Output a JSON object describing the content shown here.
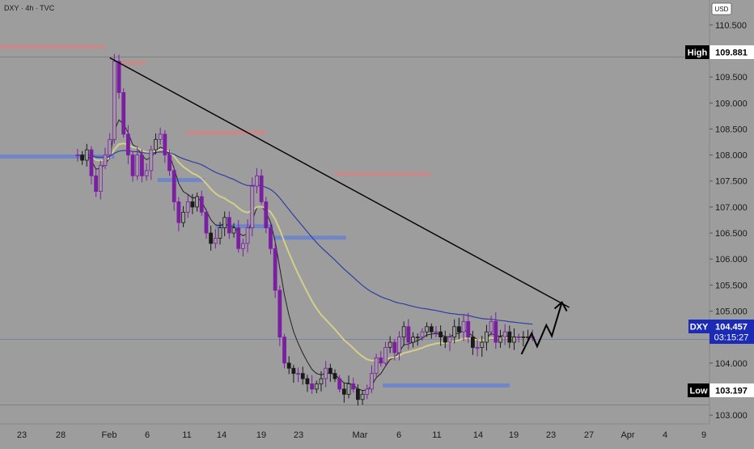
{
  "header": {
    "symbol_line": "DXY · 4h · TVC"
  },
  "price_scale": {
    "currency": "USD"
  },
  "chart_data": {
    "type": "candlestick",
    "title": "DXY · 4h · TVC",
    "ylim": [
      102.83,
      110.98
    ],
    "y_ticks": [
      "110.500",
      "110.000",
      "109.500",
      "109.000",
      "108.500",
      "108.000",
      "107.500",
      "107.000",
      "106.500",
      "106.000",
      "105.500",
      "105.000",
      "104.500",
      "104.000",
      "103.500",
      "103.000"
    ],
    "x_tick_labels": [
      "23",
      "28",
      "Feb",
      "6",
      "11",
      "14",
      "19",
      "23",
      "Mar",
      "6",
      "11",
      "14",
      "19",
      "23",
      "27",
      "Apr",
      "4",
      "9"
    ],
    "price_tags": {
      "high": {
        "label": "High",
        "value": "109.881"
      },
      "current": {
        "label": "DXY",
        "value": "104.457",
        "countdown": "03:15:27"
      },
      "low": {
        "label": "Low",
        "value": "103.197"
      }
    },
    "colors": {
      "background": "#9d9d9d",
      "candle": "#1a1a1a",
      "candle_alt": "#7b1fa2",
      "supply_zone": "#c98a8a",
      "demand_zone": "#6f85c9",
      "ma_short": "#1a1a1a",
      "ma_mid": "#d6d28a",
      "ma_long": "#2a3aa0",
      "trendline": "#000000"
    },
    "supply_zones": [
      {
        "from_day": -15.0,
        "to_day": 0.0,
        "price": 110.08
      },
      {
        "from_day": 1.6,
        "to_day": 4.5,
        "price": 109.77
      },
      {
        "from_day": 8.8,
        "to_day": 17.5,
        "price": 108.43
      },
      {
        "from_day": 25.0,
        "to_day": 35.5,
        "price": 107.64
      }
    ],
    "demand_zones": [
      {
        "from_day": -15.0,
        "to_day": 1.0,
        "price": 107.97
      },
      {
        "from_day": 5.7,
        "to_day": 10.8,
        "price": 107.52
      },
      {
        "from_day": 12.0,
        "to_day": 18.3,
        "price": 106.63
      },
      {
        "from_day": 18.3,
        "to_day": 26.2,
        "price": 106.41
      },
      {
        "from_day": 30.2,
        "to_day": 44.0,
        "price": 103.57
      }
    ],
    "series": [
      {
        "kind": "candles",
        "x": [
          -3.0,
          -2.5,
          -2.0,
          -1.5,
          -1.0,
          -0.5,
          0.0,
          0.5,
          1.0,
          1.5,
          2.0,
          2.5,
          3.0,
          3.5,
          4.0,
          4.5,
          5.0,
          5.5,
          6.0,
          6.5,
          7.0,
          7.5,
          8.0,
          8.5,
          9.0,
          9.5,
          10.0,
          10.5,
          11.0,
          11.5,
          12.0,
          12.5,
          13.0,
          13.5,
          14.0,
          14.5,
          15.0,
          15.5,
          16.0,
          16.5,
          17.0,
          17.5,
          18.0,
          18.5,
          19.0,
          19.5,
          20.0,
          20.5,
          21.0,
          21.5,
          22.0,
          22.5,
          23.0,
          23.5,
          24.0,
          24.5,
          25.0,
          25.5,
          26.0,
          26.5,
          27.0,
          27.5,
          28.0,
          28.5,
          29.0,
          29.5,
          30.0,
          30.5,
          31.0,
          31.5,
          32.0,
          32.5,
          33.0,
          33.5,
          34.0,
          34.5,
          35.0,
          35.5,
          36.0,
          36.5,
          37.0,
          37.5,
          38.0,
          38.5,
          39.0,
          39.5,
          40.0,
          40.5,
          41.0,
          41.5,
          42.0,
          42.5,
          43.0,
          43.5,
          44.0,
          44.5,
          45.0,
          45.5,
          46.0,
          46.5
        ],
        "close": [
          108.0,
          107.9,
          108.1,
          107.6,
          107.3,
          107.8,
          108.0,
          108.3,
          109.8,
          109.2,
          108.4,
          108.0,
          107.6,
          108.0,
          107.6,
          107.7,
          108.1,
          108.3,
          108.4,
          108.0,
          107.7,
          107.1,
          106.7,
          106.9,
          107.1,
          107.0,
          107.2,
          106.9,
          106.5,
          106.3,
          106.4,
          106.6,
          106.8,
          106.5,
          106.6,
          106.2,
          106.3,
          106.6,
          107.4,
          107.6,
          107.1,
          106.6,
          106.2,
          105.4,
          104.5,
          104.0,
          103.9,
          103.8,
          103.8,
          103.7,
          103.6,
          103.5,
          103.6,
          103.7,
          103.9,
          103.8,
          103.7,
          103.5,
          103.4,
          103.6,
          103.5,
          103.3,
          103.4,
          103.5,
          103.8,
          104.1,
          104.0,
          104.3,
          104.4,
          104.2,
          104.5,
          104.7,
          104.4,
          104.5,
          104.5,
          104.6,
          104.7,
          104.6,
          104.6,
          104.5,
          104.4,
          104.5,
          104.7,
          104.6,
          104.8,
          104.5,
          104.3,
          104.3,
          104.4,
          104.6,
          104.8,
          104.4,
          104.5,
          104.6,
          104.4,
          104.5,
          104.5,
          104.5,
          104.5,
          104.5
        ]
      },
      {
        "kind": "ma",
        "name": "",
        "values": []
      },
      {
        "kind": "ma",
        "name": "",
        "values": []
      },
      {
        "kind": "ma",
        "name": "",
        "values": []
      }
    ],
    "trendline": {
      "from": {
        "day": 0.5,
        "price": 109.87
      },
      "to": {
        "day": 50.5,
        "price": 105.07
      }
    },
    "projection_path": [
      {
        "day": 45.3,
        "price": 104.17
      },
      {
        "day": 46.4,
        "price": 104.57
      },
      {
        "day": 47.0,
        "price": 104.32
      },
      {
        "day": 48.0,
        "price": 104.73
      },
      {
        "day": 48.6,
        "price": 104.52
      },
      {
        "day": 49.7,
        "price": 105.17
      }
    ],
    "grid": false,
    "legend": "none"
  }
}
